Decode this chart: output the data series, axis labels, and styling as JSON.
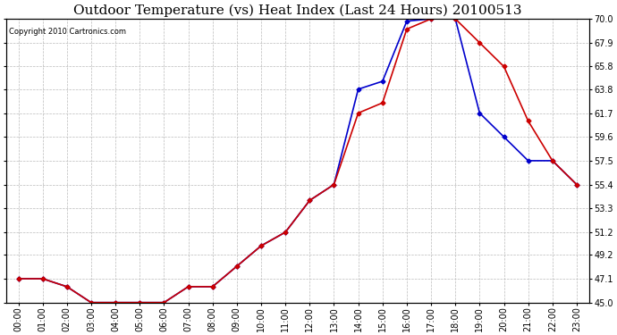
{
  "title": "Outdoor Temperature (vs) Heat Index (Last 24 Hours) 20100513",
  "copyright_text": "Copyright 2010 Cartronics.com",
  "x_labels": [
    "00:00",
    "01:00",
    "02:00",
    "03:00",
    "04:00",
    "05:00",
    "06:00",
    "07:00",
    "08:00",
    "09:00",
    "10:00",
    "11:00",
    "12:00",
    "13:00",
    "14:00",
    "15:00",
    "16:00",
    "17:00",
    "18:00",
    "19:00",
    "20:00",
    "21:00",
    "22:00",
    "23:00"
  ],
  "temp_data": [
    47.1,
    47.1,
    46.4,
    45.0,
    45.0,
    45.0,
    45.0,
    46.4,
    46.4,
    48.2,
    50.0,
    51.2,
    54.0,
    55.4,
    61.7,
    62.6,
    69.1,
    70.0,
    70.0,
    67.9,
    65.8,
    61.0,
    57.5,
    55.4
  ],
  "heat_index_data": [
    47.1,
    47.1,
    46.4,
    45.0,
    45.0,
    45.0,
    45.0,
    46.4,
    46.4,
    48.2,
    50.0,
    51.2,
    54.0,
    55.4,
    63.8,
    64.5,
    69.8,
    70.0,
    70.0,
    61.7,
    59.6,
    57.5,
    57.5,
    55.4
  ],
  "temp_color": "#cc0000",
  "heat_index_color": "#0000cc",
  "marker": "D",
  "marker_size": 2.5,
  "line_width": 1.2,
  "ylim": [
    45.0,
    70.0
  ],
  "ytick_values": [
    45.0,
    47.1,
    49.2,
    51.2,
    53.3,
    55.4,
    57.5,
    59.6,
    61.7,
    63.8,
    65.8,
    67.9,
    70.0
  ],
  "ytick_labels": [
    "45.0",
    "47.1",
    "49.2",
    "51.2",
    "53.3",
    "55.4",
    "57.5",
    "59.6",
    "61.7",
    "63.8",
    "65.8",
    "67.9",
    "70.0"
  ],
  "background_color": "#ffffff",
  "plot_background": "#ffffff",
  "grid_color": "#bbbbbb",
  "title_fontsize": 11,
  "tick_fontsize": 7,
  "copyright_fontsize": 6
}
